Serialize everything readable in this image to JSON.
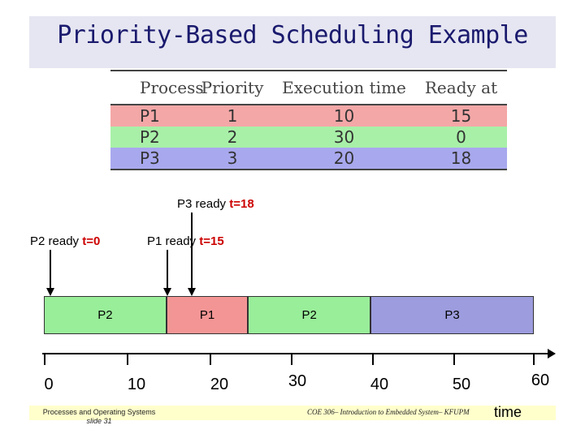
{
  "title": "Priority-Based Scheduling Example",
  "table": {
    "headers": [
      "Process",
      "Priority",
      "Execution time",
      "Ready at"
    ],
    "rows": [
      {
        "process": "P1",
        "priority": "1",
        "execution_time": "10",
        "ready_at": "15",
        "color": "#f4a7a7"
      },
      {
        "process": "P2",
        "priority": "2",
        "execution_time": "30",
        "ready_at": "0",
        "color": "#a8f0a8"
      },
      {
        "process": "P3",
        "priority": "3",
        "execution_time": "20",
        "ready_at": "18",
        "color": "#a8a8ee"
      }
    ]
  },
  "ready_markers": [
    {
      "label": "P2 ready ",
      "time_text": "t=0",
      "time": 0
    },
    {
      "label": "P1 ready ",
      "time_text": "t=15",
      "time": 15
    },
    {
      "label": "P3 ready ",
      "time_text": "t=18",
      "time": 18
    }
  ],
  "gantt": [
    {
      "process": "P2",
      "start": 0,
      "end": 15,
      "color": "#99ee99"
    },
    {
      "process": "P1",
      "start": 15,
      "end": 25,
      "color": "#f49595"
    },
    {
      "process": "P2",
      "start": 25,
      "end": 40,
      "color": "#99ee99"
    },
    {
      "process": "P3",
      "start": 40,
      "end": 60,
      "color": "#9c9cde"
    }
  ],
  "axis": {
    "ticks": [
      "0",
      "10",
      "20",
      "30",
      "40",
      "50",
      "60"
    ],
    "label": "time"
  },
  "footer": {
    "left_line1": "Processes and Operating Systems",
    "left_line2": "slide 31",
    "right": "COE 306– Introduction to Embedded System– KFUPM"
  }
}
